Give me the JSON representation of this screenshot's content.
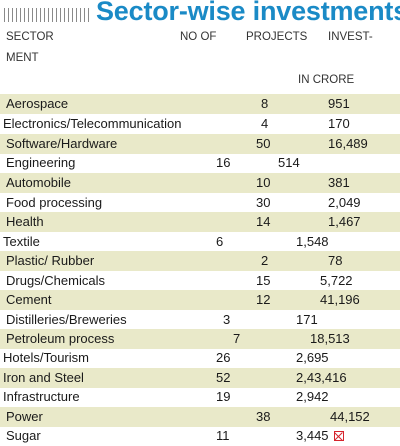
{
  "title": "Sector-wise investments",
  "headers": {
    "sector_line1": "SECTOR",
    "sector_line2": "MENT",
    "no_of": "NO OF",
    "projects": "PROJECTS",
    "invest": "INVEST-",
    "in_crore": "IN CRORE"
  },
  "rows": [
    {
      "sector": "Aerospace",
      "projects": "8",
      "invest": "951"
    },
    {
      "sector": "Electronics/Telecommunication",
      "projects": "4",
      "invest": "170"
    },
    {
      "sector": "Software/Hardware",
      "projects": "50",
      "invest": "16,489"
    },
    {
      "sector": "Engineering",
      "projects": "16",
      "invest": "514"
    },
    {
      "sector": "Automobile",
      "projects": "10",
      "invest": "381"
    },
    {
      "sector": "Food processing",
      "projects": "30",
      "invest": "2,049"
    },
    {
      "sector": "Health",
      "projects": "14",
      "invest": "1,467"
    },
    {
      "sector": "Textile",
      "projects": "6",
      "invest": "1,548"
    },
    {
      "sector": "Plastic/ Rubber",
      "projects": "2",
      "invest": "78"
    },
    {
      "sector": "Drugs/Chemicals",
      "projects": "15",
      "invest": "5,722"
    },
    {
      "sector": "Cement",
      "projects": "12",
      "invest": "41,196"
    },
    {
      "sector": "Distilleries/Breweries",
      "projects": "3",
      "invest": "171"
    },
    {
      "sector": "Petroleum process",
      "projects": "7",
      "invest": "18,513"
    },
    {
      "sector": "Hotels/Tourism",
      "projects": "26",
      "invest": "2,695"
    },
    {
      "sector": "Iron and Steel",
      "projects": "52",
      "invest": "2,43,416"
    },
    {
      "sector": "Infrastructure",
      "projects": "19",
      "invest": "2,942"
    },
    {
      "sector": "Power",
      "projects": "38",
      "invest": "44,152"
    },
    {
      "sector": "Sugar",
      "projects": "11",
      "invest": "3,445"
    }
  ],
  "icon": "close-box-icon",
  "colors": {
    "title": "#1a8ac6",
    "shade": "#e9e9c9",
    "icon": "#d6242c"
  }
}
